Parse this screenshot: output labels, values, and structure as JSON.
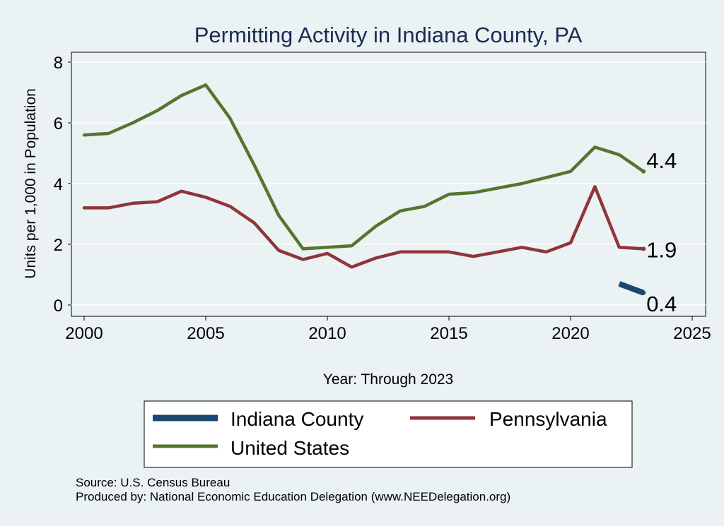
{
  "chart_data": {
    "type": "line",
    "title": "Permitting Activity in Indiana County, PA",
    "xlabel": "Year: Through 2023",
    "ylabel": "Units per 1,000 in Population",
    "xlim": [
      2000,
      2025
    ],
    "ylim": [
      0,
      8
    ],
    "x_ticks": [
      2000,
      2005,
      2010,
      2015,
      2020,
      2025
    ],
    "y_ticks": [
      0,
      2,
      4,
      6,
      8
    ],
    "grid": true,
    "legend_position": "bottom",
    "series": [
      {
        "name": "Indiana County",
        "color": "#1a476f",
        "x": [
          2022,
          2023
        ],
        "values": [
          0.7,
          0.4
        ],
        "end_label": "0.4"
      },
      {
        "name": "Pennsylvania",
        "color": "#90353b",
        "x": [
          2000,
          2001,
          2002,
          2003,
          2004,
          2005,
          2006,
          2007,
          2008,
          2009,
          2010,
          2011,
          2012,
          2013,
          2014,
          2015,
          2016,
          2017,
          2018,
          2019,
          2020,
          2021,
          2022,
          2023
        ],
        "values": [
          3.2,
          3.2,
          3.35,
          3.4,
          3.75,
          3.55,
          3.25,
          2.7,
          1.8,
          1.5,
          1.7,
          1.25,
          1.55,
          1.75,
          1.75,
          1.75,
          1.6,
          1.75,
          1.9,
          1.75,
          2.05,
          3.9,
          1.9,
          1.85
        ],
        "end_label": "1.9"
      },
      {
        "name": "United States",
        "color": "#55752f",
        "x": [
          2000,
          2001,
          2002,
          2003,
          2004,
          2005,
          2006,
          2007,
          2008,
          2009,
          2010,
          2011,
          2012,
          2013,
          2014,
          2015,
          2016,
          2017,
          2018,
          2019,
          2020,
          2021,
          2022,
          2023
        ],
        "values": [
          5.6,
          5.65,
          6.0,
          6.4,
          6.9,
          7.25,
          6.15,
          4.6,
          2.95,
          1.85,
          1.9,
          1.95,
          2.6,
          3.1,
          3.25,
          3.65,
          3.7,
          3.85,
          4.0,
          4.2,
          4.4,
          5.2,
          4.95,
          4.4
        ],
        "end_label": "4.4"
      }
    ],
    "source_note": "Source: U.S. Census Bureau",
    "produced_note": "Produced by: National Economic Education Delegation (www.NEEDelegation.org)"
  }
}
